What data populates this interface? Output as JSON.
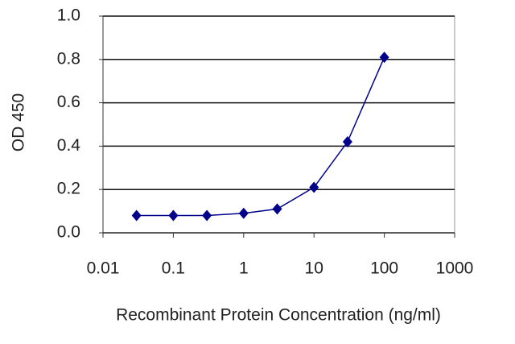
{
  "chart_data": {
    "type": "line",
    "x_label": "Recombinant Protein Concentration (ng/ml)",
    "y_label": "OD 450",
    "x": [
      0.03,
      0.1,
      0.3,
      1,
      3,
      10,
      30,
      100
    ],
    "values": [
      0.08,
      0.08,
      0.08,
      0.09,
      0.11,
      0.21,
      0.42,
      0.81
    ],
    "color": "#00008b",
    "x_log": true,
    "xlim": [
      0.01,
      1000
    ],
    "xticks": [
      0.01,
      0.1,
      1,
      10,
      100,
      1000
    ],
    "ylim": [
      0,
      1
    ],
    "yticks": [
      {
        "value": 0,
        "label": "0.0"
      },
      0.2,
      0.4,
      0.6,
      0.8,
      {
        "value": 1,
        "label": "1.0"
      }
    ],
    "grid": true
  }
}
